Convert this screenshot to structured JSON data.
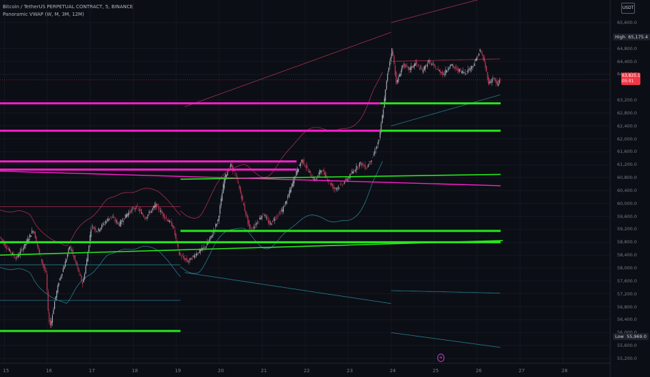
{
  "header": {
    "symbol": "Bitcoin / TetherUS PERPETUAL CONTRACT, 5, BINANCE",
    "indicator": "Panoramic VWAP (W, M, 3M, 12M)"
  },
  "toolbar": {
    "currency": "USDT"
  },
  "tags": {
    "high_label": "High",
    "high_value": "65,175.4",
    "low_label": "Low",
    "low_value": "55,969.0",
    "last_price": "63,825.1",
    "countdown": "05:01"
  },
  "marker_glyph": "⊕",
  "colors": {
    "background": "#0c0e15",
    "candle_up": "#a9b0bb",
    "candle_down": "#c43b59",
    "vwap_magenta": "#ff1fd0",
    "vwap_green": "#27e81c",
    "band_red": "#b8335a",
    "band_teal": "#2a8aa0",
    "last_price": "#f23645"
  },
  "chart_data": {
    "type": "candlestick",
    "yaxis": {
      "ticks": [
        "65,600.0",
        "64,800.0",
        "64,400.0",
        "64,000.0",
        "63,200.0",
        "62,800.0",
        "62,400.0",
        "62,000.0",
        "61,600.0",
        "61,200.0",
        "60,800.0",
        "60,400.0",
        "60,000.0",
        "59,600.0",
        "59,200.0",
        "58,800.0",
        "58,400.0",
        "58,000.0",
        "57,600.0",
        "57,200.0",
        "56,800.0",
        "56,400.0",
        "56,000.0",
        "55,600.0",
        "55,200.0"
      ],
      "range": [
        55050,
        66300
      ]
    },
    "xaxis": {
      "ticks": [
        "15",
        "16",
        "17",
        "18",
        "19",
        "20",
        "21",
        "22",
        "23",
        "24",
        "25",
        "26",
        "27",
        "28"
      ],
      "range": [
        14.9,
        29.1
      ]
    },
    "high": 65175.4,
    "low": 55969.0,
    "last": 63825.1,
    "price_path": [
      [
        14.9,
        59000
      ],
      [
        15.1,
        58600
      ],
      [
        15.3,
        58300
      ],
      [
        15.5,
        58700
      ],
      [
        15.7,
        59200
      ],
      [
        15.85,
        58400
      ],
      [
        16.0,
        57800
      ],
      [
        16.05,
        56500
      ],
      [
        16.1,
        56200
      ],
      [
        16.2,
        57000
      ],
      [
        16.3,
        57600
      ],
      [
        16.45,
        58200
      ],
      [
        16.55,
        58700
      ],
      [
        16.7,
        58100
      ],
      [
        16.85,
        57500
      ],
      [
        16.95,
        58300
      ],
      [
        17.05,
        59300
      ],
      [
        17.2,
        59150
      ],
      [
        17.35,
        59400
      ],
      [
        17.5,
        59600
      ],
      [
        17.7,
        59350
      ],
      [
        17.9,
        59700
      ],
      [
        18.1,
        59900
      ],
      [
        18.3,
        59550
      ],
      [
        18.55,
        59950
      ],
      [
        18.75,
        59600
      ],
      [
        18.95,
        59300
      ],
      [
        19.1,
        58400
      ],
      [
        19.3,
        58200
      ],
      [
        19.5,
        58450
      ],
      [
        19.7,
        58650
      ],
      [
        19.85,
        59000
      ],
      [
        20.0,
        59500
      ],
      [
        20.15,
        60800
      ],
      [
        20.3,
        61200
      ],
      [
        20.45,
        60700
      ],
      [
        20.6,
        59900
      ],
      [
        20.75,
        59150
      ],
      [
        20.9,
        59400
      ],
      [
        21.05,
        59700
      ],
      [
        21.2,
        59350
      ],
      [
        21.35,
        59600
      ],
      [
        21.5,
        59800
      ],
      [
        21.65,
        60300
      ],
      [
        21.8,
        60900
      ],
      [
        21.95,
        61350
      ],
      [
        22.1,
        61000
      ],
      [
        22.25,
        60700
      ],
      [
        22.4,
        61050
      ],
      [
        22.55,
        60750
      ],
      [
        22.7,
        60450
      ],
      [
        22.85,
        60550
      ],
      [
        23.0,
        60750
      ],
      [
        23.15,
        61000
      ],
      [
        23.3,
        61250
      ],
      [
        23.45,
        61100
      ],
      [
        23.6,
        61450
      ],
      [
        23.75,
        62000
      ],
      [
        23.85,
        63000
      ],
      [
        23.95,
        64100
      ],
      [
        24.05,
        64800
      ],
      [
        24.15,
        63700
      ],
      [
        24.3,
        64300
      ],
      [
        24.45,
        64150
      ],
      [
        24.6,
        64350
      ],
      [
        24.75,
        64100
      ],
      [
        24.9,
        64400
      ],
      [
        25.05,
        64200
      ],
      [
        25.25,
        64000
      ],
      [
        25.4,
        64300
      ],
      [
        25.55,
        64150
      ],
      [
        25.75,
        64050
      ],
      [
        25.95,
        64300
      ],
      [
        26.05,
        64600
      ],
      [
        26.1,
        64750
      ],
      [
        26.2,
        64350
      ],
      [
        26.3,
        63700
      ],
      [
        26.4,
        63900
      ],
      [
        26.5,
        63650
      ],
      [
        26.55,
        63825
      ]
    ],
    "vwap_levels": [
      {
        "color": "magenta",
        "price": 63100,
        "x": [
          14.9,
          23.75
        ]
      },
      {
        "color": "magenta",
        "price": 62250,
        "x": [
          14.9,
          23.75
        ]
      },
      {
        "color": "magenta",
        "price": 61300,
        "x": [
          14.9,
          21.8
        ]
      },
      {
        "color": "magenta",
        "price": 61050,
        "x": [
          14.9,
          21.8
        ]
      },
      {
        "color": "green",
        "price": 63100,
        "x": [
          23.75,
          26.55
        ]
      },
      {
        "color": "green",
        "price": 62250,
        "x": [
          23.75,
          26.55
        ]
      },
      {
        "color": "green",
        "price": 58800,
        "x": [
          14.9,
          26.55
        ]
      },
      {
        "color": "green",
        "price": 59150,
        "x": [
          19.1,
          26.55
        ]
      },
      {
        "color": "green",
        "price": 56050,
        "x": [
          14.9,
          19.1
        ]
      }
    ]
  }
}
